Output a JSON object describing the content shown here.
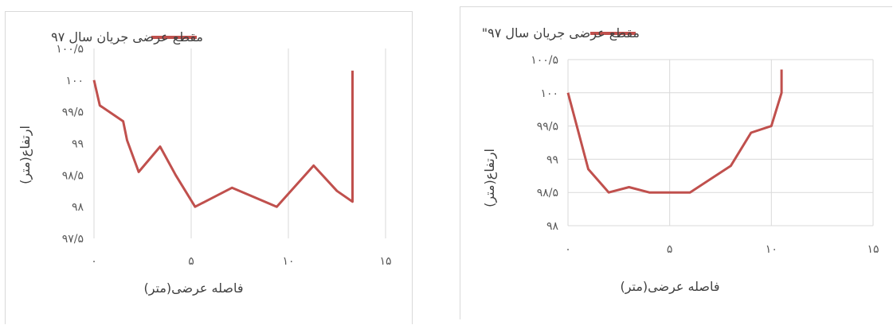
{
  "colors": {
    "series": "#c0504d",
    "grid": "#d9d9d9"
  },
  "chart_data": [
    {
      "type": "line",
      "series": [
        {
          "name": "مقطع عرضی جریان سال ۹۷",
          "x": [
            0,
            0.3,
            1.5,
            1.7,
            2.3,
            3.4,
            4.2,
            5.2,
            7.1,
            9.4,
            11.3,
            12.5,
            13.3,
            13.3,
            13.3
          ],
          "y": [
            100,
            99.6,
            99.35,
            99.05,
            98.55,
            98.95,
            98.5,
            98,
            98.3,
            98,
            98.65,
            98.25,
            98.08,
            99.8,
            100.15
          ]
        }
      ],
      "xlabel": "فاصله عرضی(متر)",
      "ylabel": "ارتفاع(متر)",
      "xlim": [
        0,
        15
      ],
      "ylim": [
        97.5,
        100.5
      ],
      "xticks": [
        "۰",
        "۵",
        "۱۰",
        "۱۵"
      ],
      "yticks": [
        "۹۷/۵",
        "۹۸",
        "۹۸/۵",
        "۹۹",
        "۹۹/۵",
        "۱۰۰",
        "۱۰۰/۵"
      ],
      "grid": "vertical",
      "legend": "top"
    },
    {
      "type": "line",
      "series": [
        {
          "name": "مقطع عرضی جریان سال ۹۷\"",
          "x": [
            0,
            1,
            2,
            3,
            4,
            5,
            6,
            7,
            8,
            9,
            10,
            10.5,
            10.5
          ],
          "y": [
            100,
            98.85,
            98.5,
            98.58,
            98.5,
            98.5,
            98.5,
            98.7,
            98.9,
            99.4,
            99.5,
            100,
            100.35
          ]
        }
      ],
      "xlabel": "فاصله عرضی(متر)",
      "ylabel": "ارتفاع(متر)",
      "xlim": [
        0,
        15
      ],
      "ylim": [
        98,
        100.5
      ],
      "xticks": [
        "۰",
        "۵",
        "۱۰",
        "۱۵"
      ],
      "yticks": [
        "۹۸",
        "۹۸/۵",
        "۹۹",
        "۹۹/۵",
        "۱۰۰",
        "۱۰۰/۵"
      ],
      "grid": "both",
      "legend": "top"
    }
  ]
}
